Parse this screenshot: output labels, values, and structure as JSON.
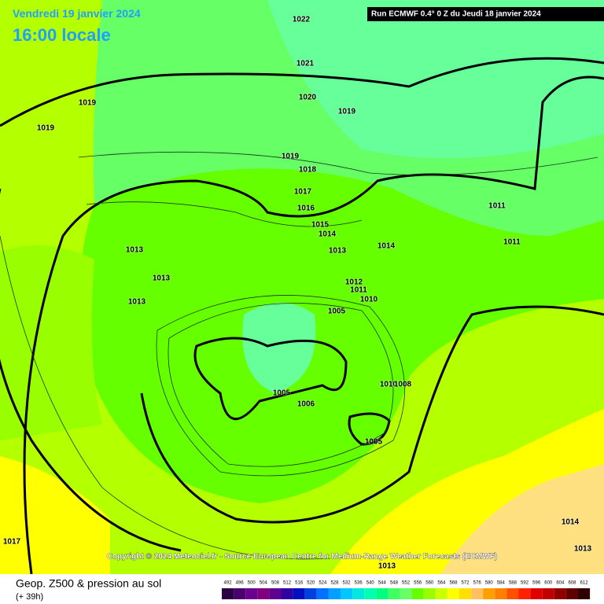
{
  "header": {
    "date": "Vendredi 19 janvier 2024",
    "time": "16:00 locale",
    "run": "Run ECMWF 0.4° 0 Z du Jeudi 18 janvier 2024"
  },
  "isobars": [
    1022,
    1021,
    1020,
    1019,
    1019,
    1019,
    1019,
    1018,
    1017,
    1016,
    1015,
    1014,
    1013,
    1014,
    1011,
    1011,
    1013,
    1013,
    1013,
    1012,
    1011,
    1010,
    1005,
    1010,
    1008,
    1005,
    1006,
    1005,
    1017,
    1014,
    1013,
    1013
  ],
  "copyright": "Copyright © 2024 Meteociel.fr - Source European Centre for Medium-Range Weather Forecasts (ECMWF)",
  "footer": {
    "title": "Geop. Z500 & pression au sol",
    "lead": "(+ 39h)"
  },
  "scale": {
    "labels": [
      492,
      496,
      500,
      504,
      508,
      512,
      516,
      520,
      524,
      528,
      532,
      536,
      540,
      544,
      548,
      552,
      556,
      560,
      564,
      568,
      572,
      576,
      580,
      584,
      588,
      592,
      596,
      600,
      604,
      608,
      612
    ],
    "colors": [
      "#2a0040",
      "#4b0070",
      "#6a0090",
      "#800080",
      "#600090",
      "#3000a0",
      "#0010c0",
      "#0040e0",
      "#0070ff",
      "#00a0ff",
      "#00c8ff",
      "#00e8e0",
      "#00ffb0",
      "#00ff80",
      "#40ff60",
      "#66ff66",
      "#66ff00",
      "#99ff00",
      "#ccff00",
      "#ffff00",
      "#ffe000",
      "#ffc060",
      "#ffa000",
      "#ff8000",
      "#ff5000",
      "#ff2000",
      "#e00000",
      "#c00000",
      "#900000",
      "#600000",
      "#300000"
    ]
  }
}
